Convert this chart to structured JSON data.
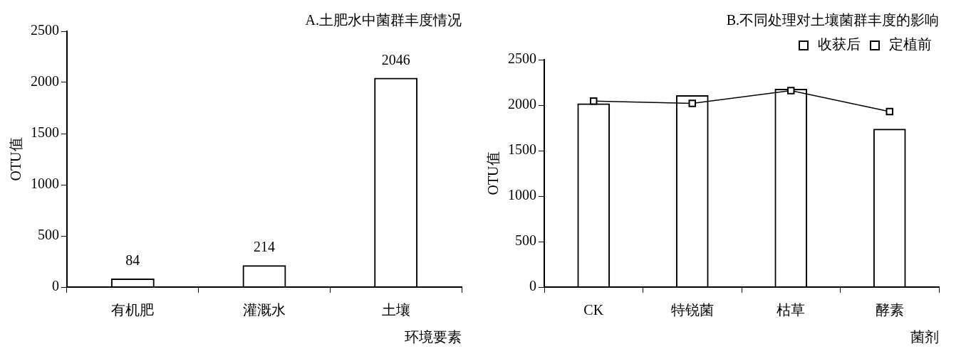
{
  "chart_data": [
    {
      "type": "bar",
      "title": "A.土肥水中菌群丰度情况",
      "xlabel": "环境要素",
      "ylabel": "OTU值",
      "categories": [
        "有机肥",
        "灌溉水",
        "土壤"
      ],
      "values": [
        84,
        214,
        2046
      ],
      "color": "#000000",
      "data_labels": true,
      "ylim": [
        0,
        2500
      ],
      "yticks": [
        0,
        500,
        1000,
        1500,
        2000,
        2500
      ],
      "grid": false,
      "legend": false
    },
    {
      "type": "bar",
      "title": "B.不同处理对土壤菌群丰度的影响",
      "xlabel": "菌剂",
      "ylabel": "OTU值",
      "categories": [
        "CK",
        "特锐菌",
        "枯草",
        "酵素"
      ],
      "series": [
        {
          "name": "收获后",
          "type": "bar",
          "color": "#000000",
          "values": [
            2020,
            2110,
            2180,
            1740
          ]
        },
        {
          "name": "定植前",
          "type": "line",
          "color": "#000000",
          "values": [
            2045,
            2020,
            2160,
            1930
          ]
        }
      ],
      "marker": "square",
      "ylim": [
        0,
        2500
      ],
      "yticks": [
        0,
        500,
        1000,
        1500,
        2000,
        2500
      ],
      "grid": false,
      "legend": "top"
    }
  ]
}
